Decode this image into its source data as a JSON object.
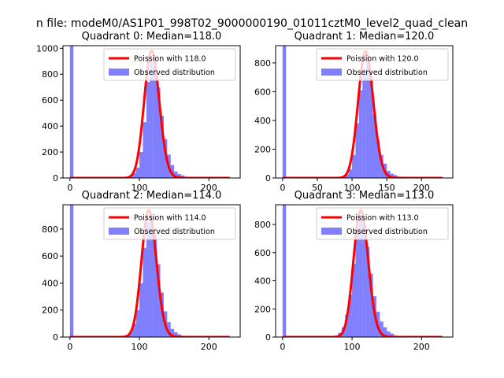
{
  "figure": {
    "suptitle": "n file: modeM0/AS1P01_998T02_9000000190_01011cztM0_level2_quad_clean"
  },
  "colors": {
    "poisson_line": "#ff0000",
    "histogram": "#0000ff",
    "axes": "#000000",
    "background": "#ffffff"
  },
  "chart_data": [
    {
      "type": "bar",
      "title": "Quadrant 0: Median=118.0",
      "xlim": [
        -10,
        245
      ],
      "ylim": [
        0,
        1020
      ],
      "xticks": [
        0,
        100,
        200
      ],
      "yticks": [
        0,
        200,
        400,
        600,
        800,
        1000
      ],
      "legend": {
        "placement": "top-right",
        "entries": [
          "Poission with 118.0",
          "Observed distribution"
        ]
      },
      "series": [
        {
          "name": "Poission with 118.0",
          "kind": "line",
          "mean": 118.0,
          "peak": 980,
          "x_range": [
            0,
            230
          ]
        },
        {
          "name": "Observed distribution",
          "kind": "histogram",
          "bin_width": 5,
          "bins": [
            {
              "x0": 0,
              "count": 1020
            },
            {
              "x0": 80,
              "count": 5
            },
            {
              "x0": 85,
              "count": 15
            },
            {
              "x0": 90,
              "count": 40
            },
            {
              "x0": 95,
              "count": 80
            },
            {
              "x0": 100,
              "count": 200
            },
            {
              "x0": 105,
              "count": 430
            },
            {
              "x0": 110,
              "count": 740
            },
            {
              "x0": 115,
              "count": 900
            },
            {
              "x0": 120,
              "count": 860
            },
            {
              "x0": 125,
              "count": 700
            },
            {
              "x0": 130,
              "count": 480
            },
            {
              "x0": 135,
              "count": 300
            },
            {
              "x0": 140,
              "count": 180
            },
            {
              "x0": 145,
              "count": 100
            },
            {
              "x0": 150,
              "count": 50
            },
            {
              "x0": 155,
              "count": 30
            },
            {
              "x0": 160,
              "count": 20
            },
            {
              "x0": 165,
              "count": 10
            },
            {
              "x0": 170,
              "count": 5
            }
          ]
        }
      ]
    },
    {
      "type": "bar",
      "title": "Quadrant 1: Median=120.0",
      "xlim": [
        -10,
        245
      ],
      "ylim": [
        0,
        920
      ],
      "xticks": [
        0,
        50,
        100,
        150,
        200
      ],
      "yticks": [
        0,
        200,
        400,
        600,
        800
      ],
      "legend": {
        "placement": "top-right",
        "entries": [
          "Poission with 120.0",
          "Observed distribution"
        ]
      },
      "series": [
        {
          "name": "Poission with 120.0",
          "kind": "line",
          "mean": 120.0,
          "peak": 880,
          "x_range": [
            0,
            230
          ]
        },
        {
          "name": "Observed distribution",
          "kind": "histogram",
          "bin_width": 5,
          "bins": [
            {
              "x0": 0,
              "count": 920
            },
            {
              "x0": 85,
              "count": 10
            },
            {
              "x0": 90,
              "count": 25
            },
            {
              "x0": 95,
              "count": 60
            },
            {
              "x0": 100,
              "count": 160
            },
            {
              "x0": 105,
              "count": 380
            },
            {
              "x0": 110,
              "count": 610
            },
            {
              "x0": 115,
              "count": 760
            },
            {
              "x0": 120,
              "count": 850
            },
            {
              "x0": 125,
              "count": 700
            },
            {
              "x0": 130,
              "count": 440
            },
            {
              "x0": 135,
              "count": 260
            },
            {
              "x0": 140,
              "count": 160
            },
            {
              "x0": 145,
              "count": 100
            },
            {
              "x0": 150,
              "count": 50
            },
            {
              "x0": 155,
              "count": 30
            },
            {
              "x0": 160,
              "count": 20
            },
            {
              "x0": 165,
              "count": 10
            },
            {
              "x0": 170,
              "count": 5
            }
          ]
        }
      ]
    },
    {
      "type": "bar",
      "title": "Quadrant 2: Median=114.0",
      "xlim": [
        -10,
        245
      ],
      "ylim": [
        0,
        980
      ],
      "xticks": [
        0,
        100,
        200
      ],
      "yticks": [
        0,
        200,
        400,
        600,
        800
      ],
      "legend": {
        "placement": "top-right",
        "entries": [
          "Poission with 114.0",
          "Observed distribution"
        ]
      },
      "series": [
        {
          "name": "Poission with 114.0",
          "kind": "line",
          "mean": 114.0,
          "peak": 940,
          "x_range": [
            0,
            230
          ]
        },
        {
          "name": "Observed distribution",
          "kind": "histogram",
          "bin_width": 5,
          "bins": [
            {
              "x0": 0,
              "count": 980
            },
            {
              "x0": 80,
              "count": 15
            },
            {
              "x0": 85,
              "count": 40
            },
            {
              "x0": 90,
              "count": 100
            },
            {
              "x0": 95,
              "count": 200
            },
            {
              "x0": 100,
              "count": 400
            },
            {
              "x0": 105,
              "count": 660
            },
            {
              "x0": 110,
              "count": 850
            },
            {
              "x0": 115,
              "count": 900
            },
            {
              "x0": 120,
              "count": 760
            },
            {
              "x0": 125,
              "count": 540
            },
            {
              "x0": 130,
              "count": 330
            },
            {
              "x0": 135,
              "count": 190
            },
            {
              "x0": 140,
              "count": 110
            },
            {
              "x0": 145,
              "count": 60
            },
            {
              "x0": 150,
              "count": 35
            },
            {
              "x0": 155,
              "count": 20
            },
            {
              "x0": 160,
              "count": 10
            },
            {
              "x0": 165,
              "count": 5
            }
          ]
        }
      ]
    },
    {
      "type": "bar",
      "title": "Quadrant 3: Median=113.0",
      "xlim": [
        -10,
        245
      ],
      "ylim": [
        0,
        940
      ],
      "xticks": [
        0,
        100,
        200
      ],
      "yticks": [
        0,
        200,
        400,
        600,
        800
      ],
      "legend": {
        "placement": "top-right",
        "entries": [
          "Poission with 113.0",
          "Observed distribution"
        ]
      },
      "series": [
        {
          "name": "Poission with 113.0",
          "kind": "line",
          "mean": 113.0,
          "peak": 900,
          "x_range": [
            0,
            230
          ]
        },
        {
          "name": "Observed distribution",
          "kind": "histogram",
          "bin_width": 5,
          "bins": [
            {
              "x0": 0,
              "count": 940
            },
            {
              "x0": 75,
              "count": 10
            },
            {
              "x0": 80,
              "count": 30
            },
            {
              "x0": 85,
              "count": 70
            },
            {
              "x0": 90,
              "count": 160
            },
            {
              "x0": 95,
              "count": 300
            },
            {
              "x0": 100,
              "count": 520
            },
            {
              "x0": 105,
              "count": 760
            },
            {
              "x0": 110,
              "count": 860
            },
            {
              "x0": 115,
              "count": 800
            },
            {
              "x0": 120,
              "count": 640
            },
            {
              "x0": 125,
              "count": 450
            },
            {
              "x0": 130,
              "count": 290
            },
            {
              "x0": 135,
              "count": 180
            },
            {
              "x0": 140,
              "count": 110
            },
            {
              "x0": 145,
              "count": 70
            },
            {
              "x0": 150,
              "count": 40
            },
            {
              "x0": 155,
              "count": 25
            },
            {
              "x0": 160,
              "count": 12
            },
            {
              "x0": 165,
              "count": 6
            }
          ]
        }
      ]
    }
  ]
}
